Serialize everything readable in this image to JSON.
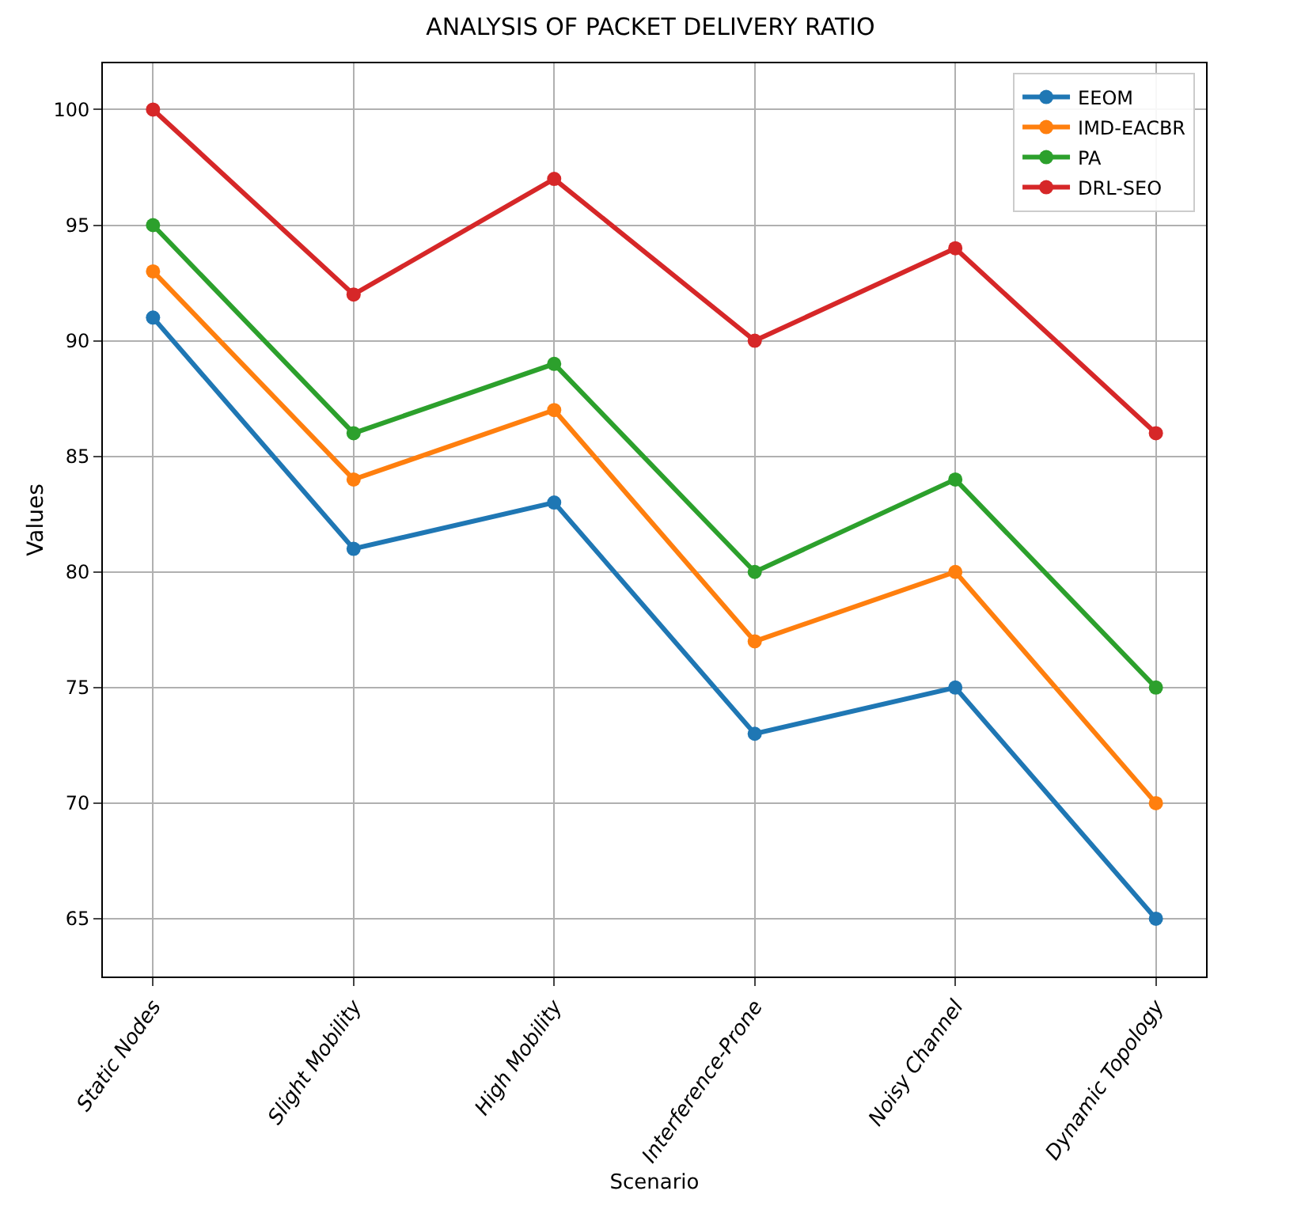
{
  "chart_data": {
    "type": "line",
    "title": "ANALYSIS OF PACKET DELIVERY RATIO",
    "xlabel": "Scenario",
    "ylabel": "Values",
    "categories": [
      "Static Nodes",
      "Slight Mobility",
      "High Mobility",
      "Interference-Prone",
      "Noisy Channel",
      "Dynamic Topology"
    ],
    "series": [
      {
        "name": "EEOM",
        "color": "#1f77b4",
        "values": [
          91,
          81,
          83,
          73,
          75,
          65
        ]
      },
      {
        "name": "IMD-EACBR",
        "color": "#ff7f0e",
        "values": [
          93,
          84,
          87,
          77,
          80,
          70
        ]
      },
      {
        "name": "PA",
        "color": "#2ca02c",
        "values": [
          95,
          86,
          89,
          80,
          84,
          75
        ]
      },
      {
        "name": "DRL-SEO",
        "color": "#d62728",
        "values": [
          100,
          92,
          97,
          90,
          94,
          86
        ]
      }
    ],
    "ylim": [
      62.5,
      102
    ],
    "yticks": [
      65,
      70,
      75,
      80,
      85,
      90,
      95,
      100
    ],
    "grid": true,
    "legend": "top right",
    "marker": "circle",
    "line_style": "solid"
  }
}
